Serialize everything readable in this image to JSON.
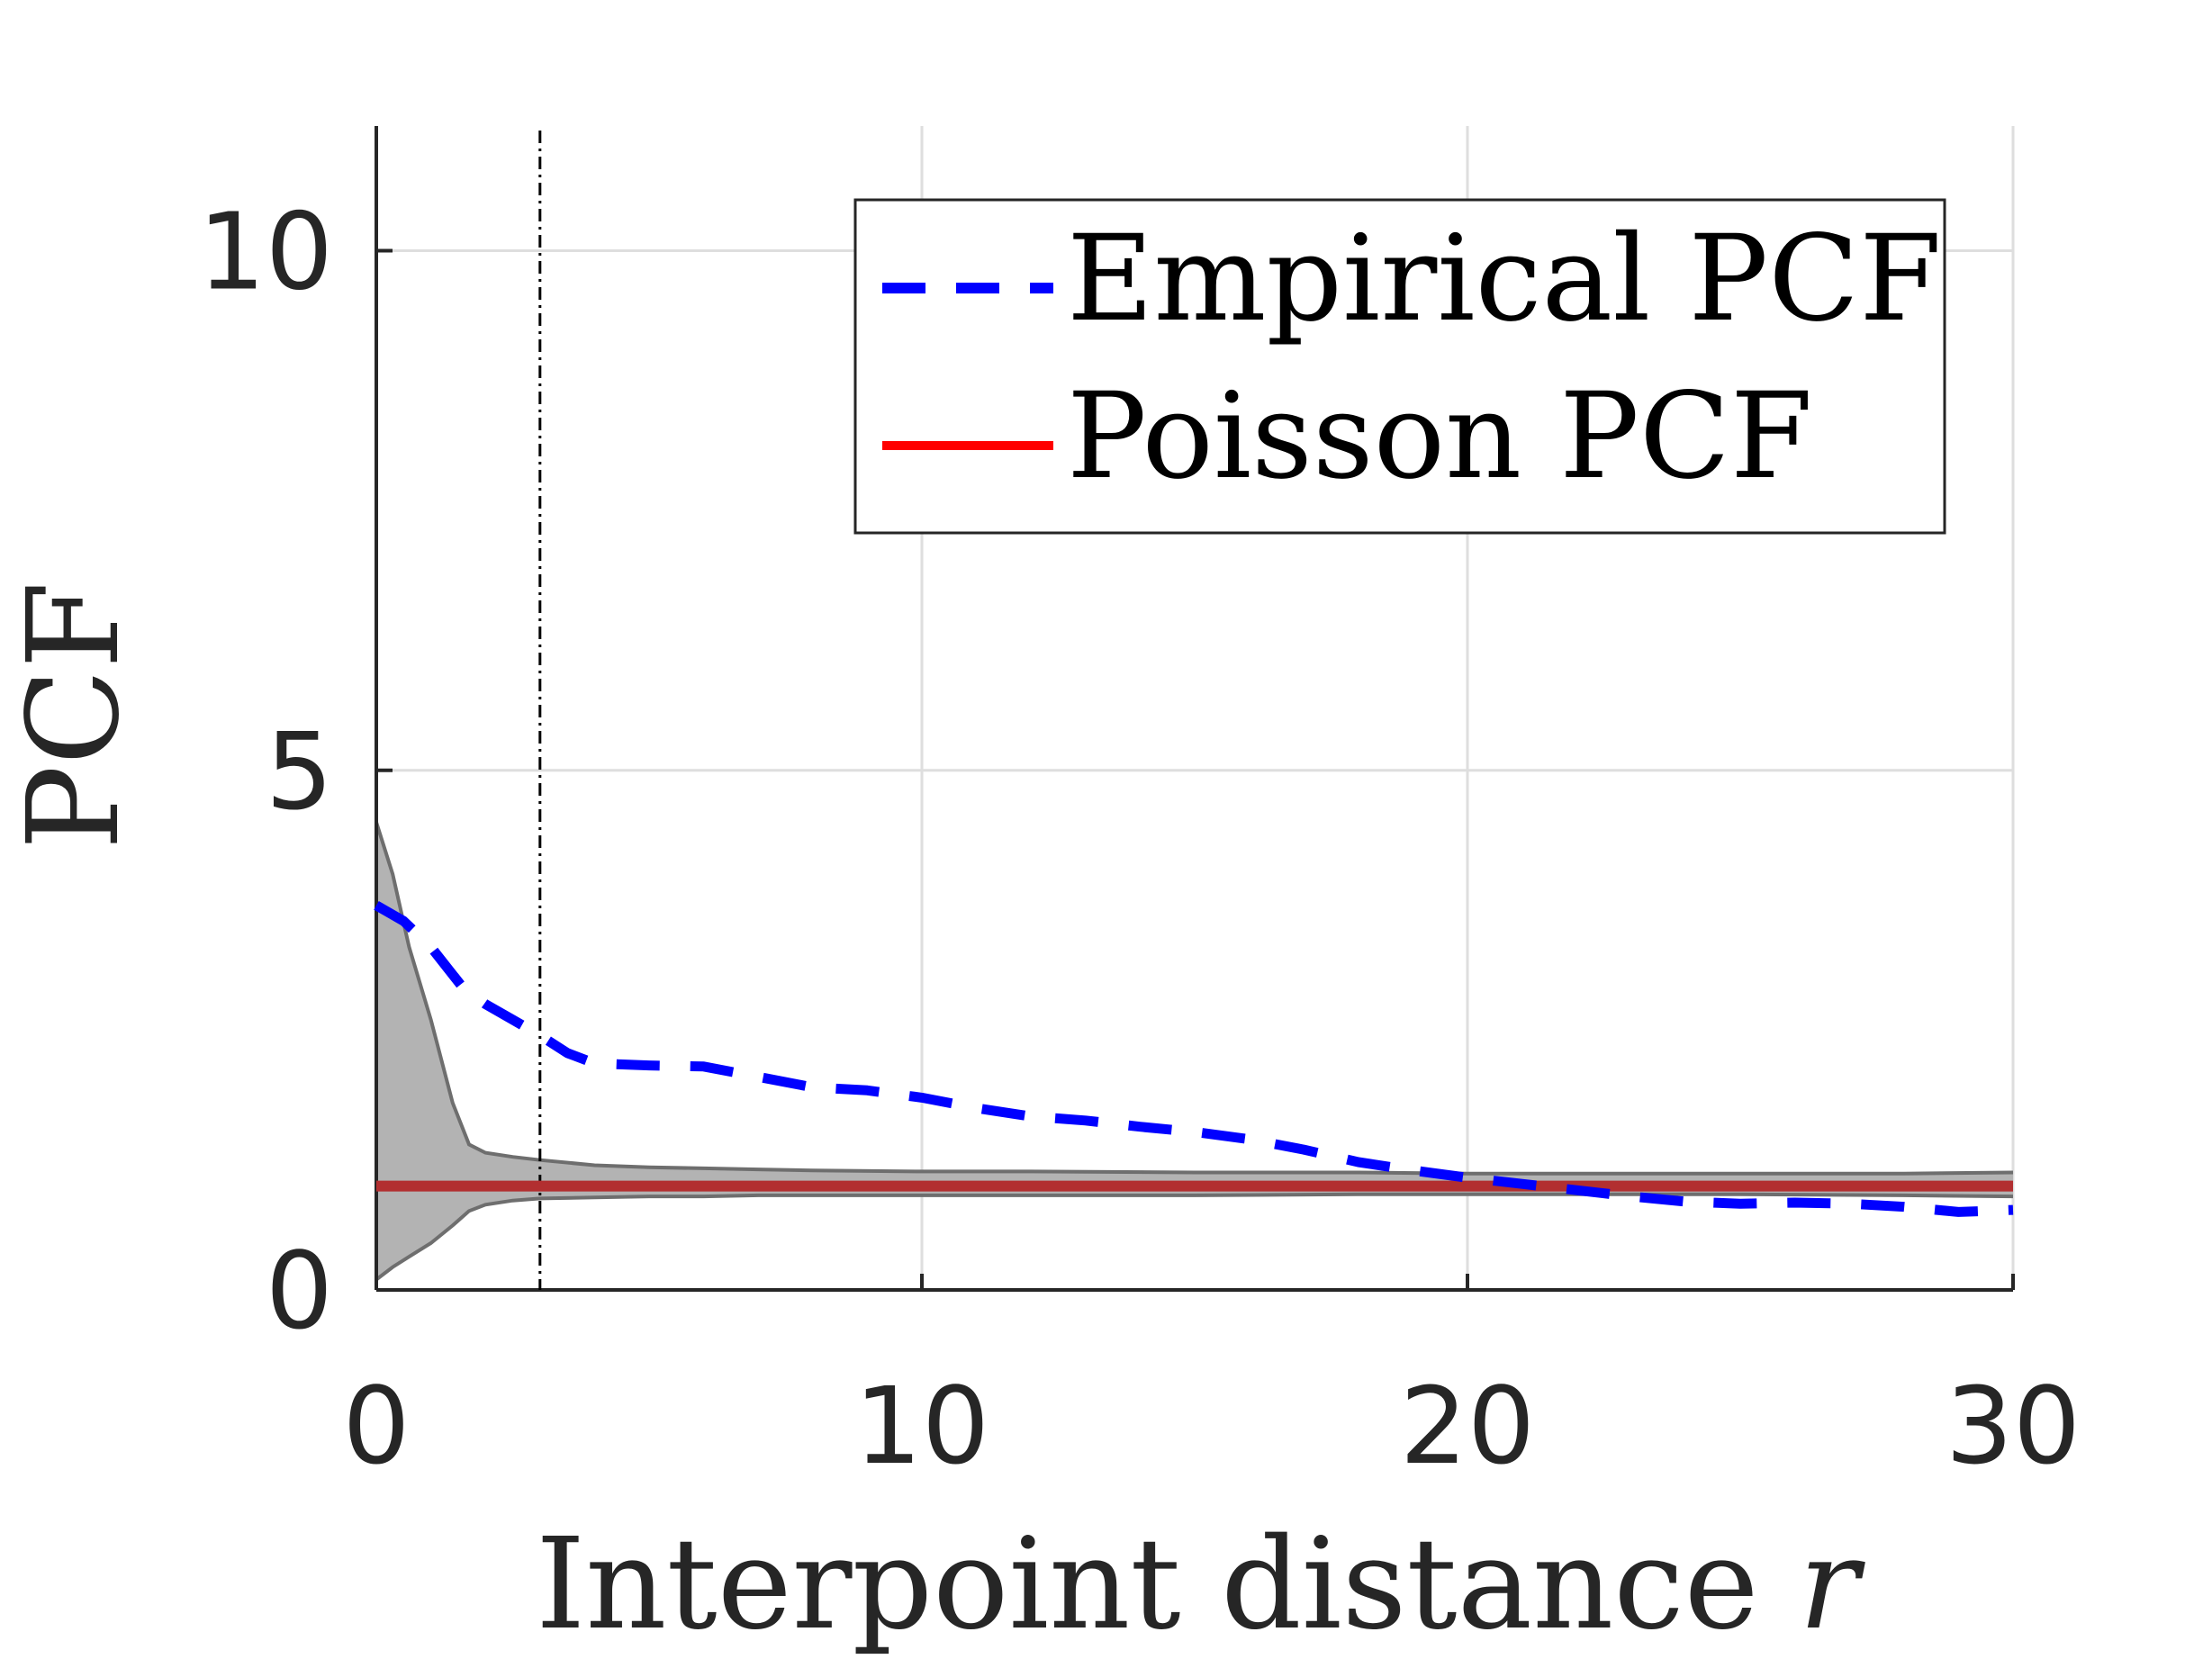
{
  "chart_data": {
    "type": "line",
    "xlabel_text": "Interpoint distance ",
    "xlabel_var": "r",
    "ylabel": "PCF",
    "xlim": [
      0,
      30
    ],
    "ylim": [
      0,
      11.2
    ],
    "xticks": [
      0,
      10,
      20,
      30
    ],
    "yticks": [
      0,
      5,
      10
    ],
    "xtick_labels": [
      "0",
      "10",
      "20",
      "30"
    ],
    "ytick_labels": [
      "0",
      "5",
      "10"
    ],
    "grid": true,
    "legend_position": "top-right",
    "vertical_marker_x": 3,
    "colors": {
      "empirical": "#0000ff",
      "poisson": "#ff0000",
      "poisson_rendered": "#b22f30",
      "envelope_fill": "#b3b3b3",
      "envelope_edge": "#6e6e6e",
      "grid": "#dedede",
      "axis": "#262626"
    },
    "series": [
      {
        "name": "Empirical PCF",
        "style": "dashed",
        "x": [
          0,
          0.5,
          1,
          1.3,
          1.6,
          2,
          2.5,
          3,
          3.5,
          4,
          5,
          6,
          7,
          8,
          9,
          10,
          11,
          12,
          13,
          14,
          15,
          16,
          17,
          18,
          19,
          20,
          21,
          22,
          23,
          24,
          25,
          26,
          27,
          28,
          29,
          30
        ],
        "y": [
          3.7,
          3.55,
          3.3,
          3.1,
          2.9,
          2.75,
          2.6,
          2.45,
          2.28,
          2.18,
          2.16,
          2.15,
          2.05,
          1.95,
          1.92,
          1.85,
          1.75,
          1.67,
          1.63,
          1.57,
          1.52,
          1.45,
          1.35,
          1.23,
          1.15,
          1.08,
          1.02,
          0.96,
          0.9,
          0.85,
          0.83,
          0.84,
          0.83,
          0.8,
          0.75,
          0.77
        ]
      },
      {
        "name": "Poisson PCF",
        "style": "solid",
        "x": [
          0,
          30
        ],
        "y": [
          1,
          1
        ]
      }
    ],
    "envelope": {
      "x": [
        0,
        0.3,
        0.6,
        1.0,
        1.4,
        1.7,
        2.0,
        2.5,
        3.0,
        4,
        5,
        6,
        7,
        8,
        10,
        12,
        15,
        18,
        20,
        22,
        25,
        28,
        30
      ],
      "upper": [
        4.5,
        4.0,
        3.3,
        2.6,
        1.8,
        1.4,
        1.32,
        1.28,
        1.25,
        1.2,
        1.18,
        1.17,
        1.16,
        1.15,
        1.14,
        1.14,
        1.13,
        1.13,
        1.12,
        1.12,
        1.12,
        1.12,
        1.13
      ],
      "lower": [
        0.1,
        0.22,
        0.32,
        0.45,
        0.62,
        0.76,
        0.82,
        0.86,
        0.88,
        0.89,
        0.9,
        0.9,
        0.91,
        0.91,
        0.91,
        0.91,
        0.91,
        0.92,
        0.92,
        0.92,
        0.92,
        0.91,
        0.9
      ]
    }
  }
}
